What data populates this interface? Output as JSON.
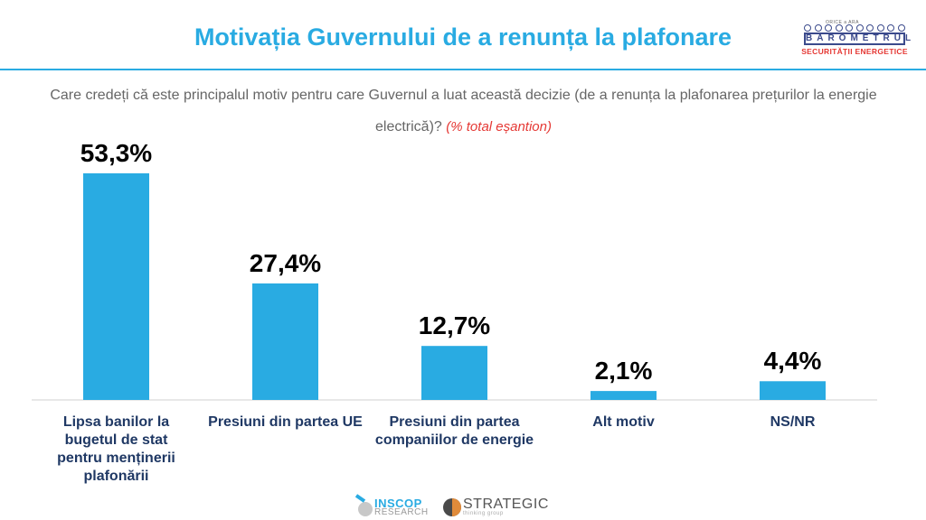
{
  "title": "Motivația Guvernului de a renunța la plafonare",
  "logo": {
    "top_text": "ORICE a ARA",
    "main_text": "BAROMETRUL",
    "sub_text": "SECURITĂȚII ENERGETICE"
  },
  "question": {
    "text": "Care credeți că este principalul motiv pentru care Guvernul a luat această decizie (de a renunța la plafonarea prețurilor la energie electrică)?",
    "note": "(% total eșantion)"
  },
  "chart_data": {
    "type": "bar",
    "categories": [
      "Lipsa banilor la bugetul de stat pentru menținerii plafonării",
      "Presiuni din partea UE",
      "Presiuni din partea companiilor de energie",
      "Alt motiv",
      "NS/NR"
    ],
    "values": [
      53.3,
      27.4,
      12.7,
      2.1,
      4.4
    ],
    "value_labels": [
      "53,3%",
      "27,4%",
      "12,7%",
      "2,1%",
      "4,4%"
    ],
    "title": "Motivația Guvernului de a renunța la plafonare",
    "xlabel": "",
    "ylabel": "",
    "ylim": [
      0,
      55
    ],
    "bar_color": "#29abe2",
    "label_color": "#1f3864"
  },
  "footer": {
    "inscop_name": "INSCOP",
    "inscop_sub": "RESEARCH",
    "strategic_name": "STRATEGIC",
    "strategic_sub": "thinking group"
  }
}
